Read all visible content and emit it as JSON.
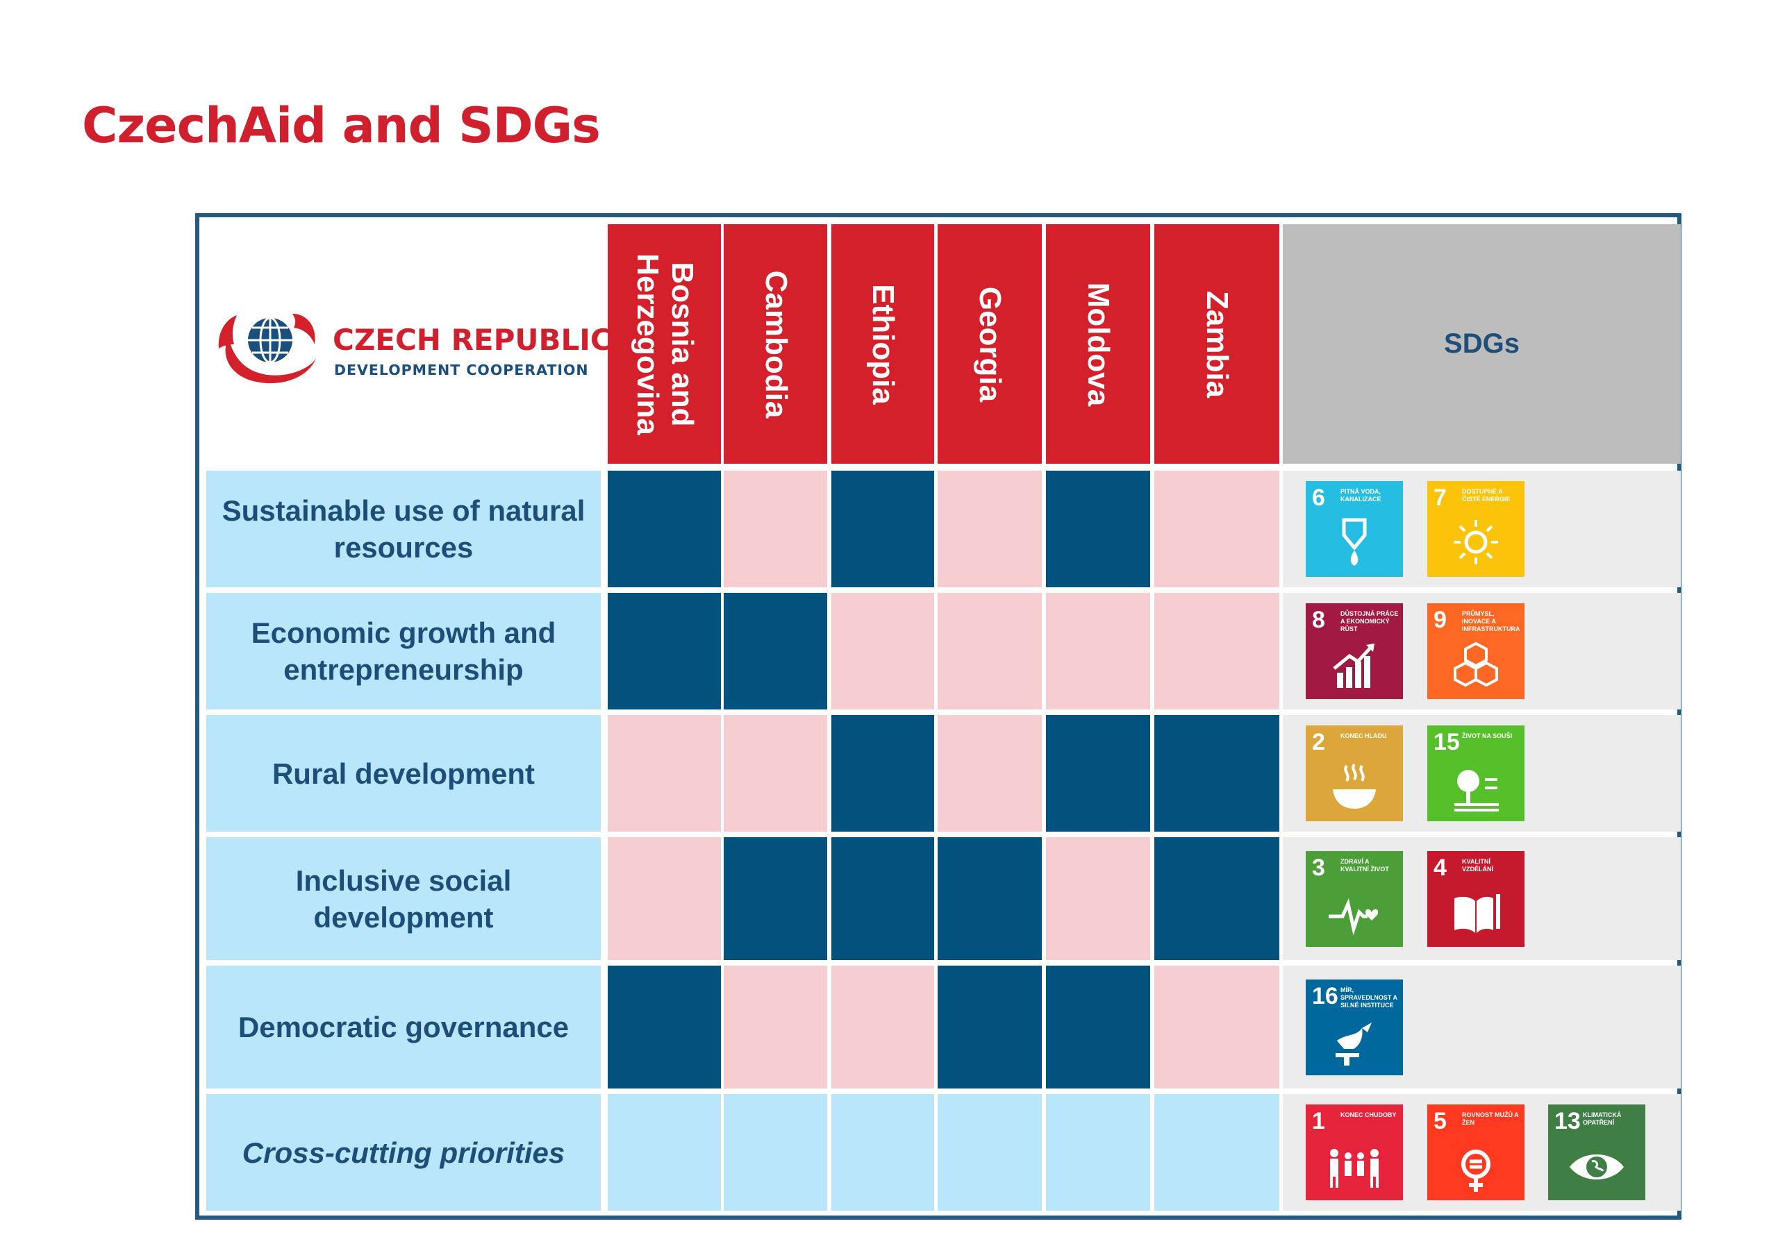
{
  "title": "CzechAid and SDGs",
  "logo": {
    "name": "CZECH REPUBLIC",
    "subtitle": "DEVELOPMENT COOPERATION"
  },
  "countries": [
    "Bosnia and\nHerzegovina",
    "Cambodia",
    "Ethiopia",
    "Georgia",
    "Moldova",
    "Zambia"
  ],
  "sdg_header": "SDGs",
  "rows": [
    {
      "label": "Sustainable use of natural resources",
      "marks": [
        true,
        false,
        true,
        false,
        true,
        false
      ],
      "sdgs": [
        {
          "number": "6",
          "label": "Pitná voda, kanalizace",
          "color": "#26bde2",
          "icon": "water-icon"
        },
        {
          "number": "7",
          "label": "Dostupné a čisté energie",
          "color": "#fcc30b",
          "icon": "sun-icon"
        }
      ]
    },
    {
      "label": "Economic growth and entrepreneurship",
      "marks": [
        true,
        true,
        false,
        false,
        false,
        false
      ],
      "sdgs": [
        {
          "number": "8",
          "label": "Důstojná práce a ekonomický růst",
          "color": "#a21942",
          "icon": "growth-chart-icon"
        },
        {
          "number": "9",
          "label": "Průmysl, inovace a infrastruktura",
          "color": "#fd6925",
          "icon": "cubes-icon"
        }
      ]
    },
    {
      "label": "Rural development",
      "marks": [
        false,
        false,
        true,
        false,
        true,
        true
      ],
      "sdgs": [
        {
          "number": "2",
          "label": "Konec hladu",
          "color": "#dda63a",
          "icon": "bowl-icon"
        },
        {
          "number": "15",
          "label": "Život na souši",
          "color": "#56c02b",
          "icon": "tree-icon"
        }
      ]
    },
    {
      "label": "Inclusive social development",
      "marks": [
        false,
        true,
        true,
        true,
        false,
        true
      ],
      "sdgs": [
        {
          "number": "3",
          "label": "Zdraví a kvalitní život",
          "color": "#4c9f38",
          "icon": "heartbeat-icon"
        },
        {
          "number": "4",
          "label": "Kvalitní vzdělání",
          "color": "#c5192d",
          "icon": "book-icon"
        }
      ]
    },
    {
      "label": "Democratic governance",
      "marks": [
        true,
        false,
        false,
        true,
        true,
        false
      ],
      "sdgs": [
        {
          "number": "16",
          "label": "Mír, spravedlnost a silné instituce",
          "color": "#00689d",
          "icon": "dove-icon"
        }
      ]
    },
    {
      "label": "Cross-cutting priorities",
      "marks": [
        null,
        null,
        null,
        null,
        null,
        null
      ],
      "sdgs": [
        {
          "number": "1",
          "label": "Konec chudoby",
          "color": "#e5243b",
          "icon": "family-icon"
        },
        {
          "number": "5",
          "label": "Rovnost mužů a žen",
          "color": "#ff3a21",
          "icon": "gender-icon"
        },
        {
          "number": "13",
          "label": "Klimatická opatření",
          "color": "#3f7e44",
          "icon": "eye-globe-icon"
        }
      ]
    }
  ],
  "colors": {
    "title": "#d0202e",
    "country_header": "#d3202b",
    "active_cell": "#03527e",
    "inactive_cell": "#f6cdd0",
    "row_label_bg": "#b9e6fa",
    "border": "#1f5b82"
  }
}
